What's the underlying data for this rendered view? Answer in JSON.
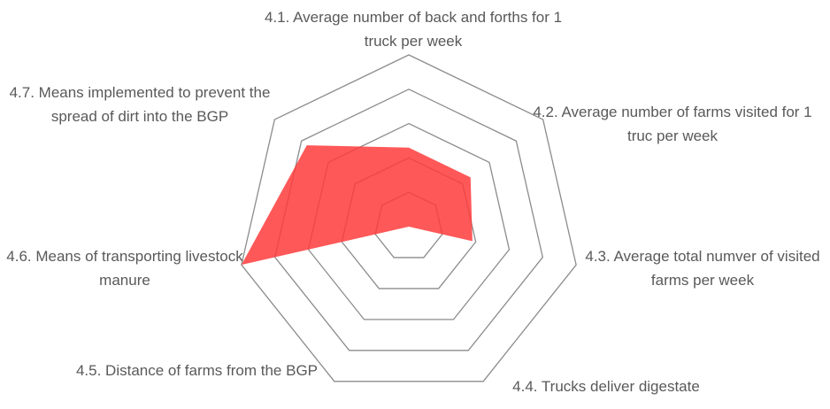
{
  "chart_data": {
    "type": "radar",
    "categories": [
      "4.1. Average number of back and forths for 1 truck per week",
      "4.2. Average number of farms visited for 1 truc per week",
      "4.3. Average total numver of visited farms per week",
      "4.4. Trucks deliver digestate",
      "4.5. Distance of farms from the BGP",
      "4.6. Means of transporting livestock manure",
      "4.7. Means implemented to prevent the spread of dirt into the BGP"
    ],
    "values": [
      2.3,
      2.3,
      1.9,
      0,
      0,
      5,
      3.8
    ],
    "color": "#ff3b3b",
    "rlim": [
      0,
      5
    ],
    "rticks": [
      1,
      2,
      3,
      4,
      5
    ],
    "grid": true
  }
}
